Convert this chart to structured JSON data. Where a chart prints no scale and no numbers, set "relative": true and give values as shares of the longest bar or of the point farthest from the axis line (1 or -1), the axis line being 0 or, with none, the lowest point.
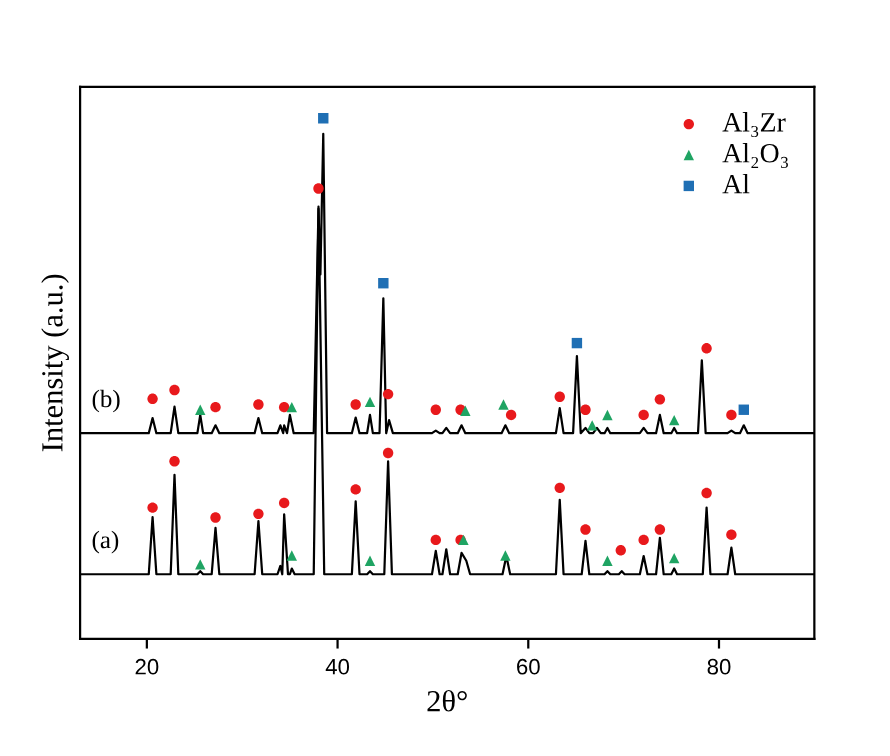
{
  "chart_data": {
    "type": "line",
    "relative": true,
    "xlabel": "2θ°",
    "ylabel": "Intensity (a.u.)",
    "xlim": [
      13,
      90
    ],
    "xticks": [
      20,
      40,
      60,
      80
    ],
    "legend": "top right",
    "grid": false,
    "series": [
      {
        "name": "(a)",
        "color": "#000000",
        "marker": "none",
        "x": [
          13,
          20.2,
          20.6,
          21.0,
          22.5,
          22.9,
          23.3,
          25.3,
          25.6,
          25.9,
          26.8,
          27.2,
          27.6,
          31.3,
          31.7,
          32.1,
          33.7,
          34.0,
          34.2,
          34.4,
          34.8,
          35.0,
          35.2,
          35.5,
          37.5,
          38.0,
          38.6,
          41.5,
          41.9,
          42.3,
          43.1,
          43.4,
          43.7,
          44.9,
          45.3,
          45.7,
          49.9,
          50.3,
          50.7,
          51.0,
          51.4,
          51.8,
          52.6,
          53.0,
          53.5,
          53.9,
          57.3,
          57.7,
          58.1,
          62.9,
          63.3,
          63.7,
          65.6,
          66.0,
          66.4,
          68.0,
          68.3,
          68.6,
          69.5,
          69.8,
          70.1,
          71.7,
          72.1,
          72.5,
          73.4,
          73.8,
          74.2,
          75.0,
          75.3,
          75.6,
          78.3,
          78.7,
          79.1,
          80.9,
          81.3,
          81.7,
          90
        ],
        "values": [
          0.124,
          0.124,
          0.234,
          0.124,
          0.124,
          0.315,
          0.124,
          0.124,
          0.13,
          0.124,
          0.124,
          0.213,
          0.124,
          0.124,
          0.226,
          0.124,
          0.124,
          0.14,
          0.124,
          0.239,
          0.124,
          0.124,
          0.135,
          0.124,
          0.124,
          0.83,
          0.124,
          0.124,
          0.264,
          0.124,
          0.124,
          0.13,
          0.124,
          0.124,
          0.341,
          0.124,
          0.124,
          0.169,
          0.124,
          0.124,
          0.172,
          0.124,
          0.124,
          0.165,
          0.15,
          0.124,
          0.124,
          0.159,
          0.124,
          0.124,
          0.267,
          0.124,
          0.124,
          0.188,
          0.124,
          0.124,
          0.13,
          0.124,
          0.124,
          0.13,
          0.124,
          0.124,
          0.159,
          0.124,
          0.124,
          0.194,
          0.124,
          0.124,
          0.135,
          0.124,
          0.124,
          0.252,
          0.124,
          0.124,
          0.175,
          0.124,
          0.124
        ]
      },
      {
        "name": "(b)",
        "color": "#000000",
        "marker": "none",
        "x": [
          13,
          20.2,
          20.6,
          21.0,
          22.5,
          22.9,
          23.3,
          25.3,
          25.6,
          25.9,
          26.8,
          27.2,
          27.6,
          31.3,
          31.7,
          32.1,
          33.7,
          34.0,
          34.3,
          34.4,
          34.7,
          35.0,
          35.4,
          37.5,
          38.0,
          38.2,
          38.5,
          38.9,
          41.5,
          41.9,
          42.3,
          43.1,
          43.4,
          43.7,
          44.4,
          44.8,
          45.1,
          45.4,
          45.8,
          49.9,
          50.3,
          50.7,
          51.0,
          51.4,
          51.8,
          52.6,
          53.0,
          53.4,
          57.2,
          57.6,
          58.0,
          62.9,
          63.3,
          63.7,
          64.7,
          65.1,
          65.5,
          66.0,
          66.4,
          66.8,
          67.2,
          67.6,
          68.0,
          68.3,
          68.6,
          71.7,
          72.1,
          72.5,
          73.4,
          73.8,
          74.2,
          75.0,
          75.3,
          75.6,
          77.8,
          78.2,
          78.6,
          80.9,
          81.3,
          81.7,
          82.2,
          82.6,
          83.0,
          90
        ],
        "values": [
          0.395,
          0.395,
          0.424,
          0.395,
          0.395,
          0.446,
          0.395,
          0.395,
          0.43,
          0.395,
          0.395,
          0.41,
          0.395,
          0.395,
          0.424,
          0.395,
          0.395,
          0.41,
          0.395,
          0.41,
          0.395,
          0.43,
          0.395,
          0.395,
          0.826,
          0.7,
          0.97,
          0.395,
          0.395,
          0.425,
          0.395,
          0.395,
          0.43,
          0.395,
          0.395,
          0.654,
          0.395,
          0.42,
          0.395,
          0.395,
          0.4,
          0.395,
          0.395,
          0.405,
          0.395,
          0.395,
          0.41,
          0.395,
          0.395,
          0.41,
          0.395,
          0.395,
          0.443,
          0.395,
          0.395,
          0.543,
          0.395,
          0.405,
          0.395,
          0.395,
          0.405,
          0.395,
          0.395,
          0.405,
          0.395,
          0.395,
          0.405,
          0.395,
          0.395,
          0.43,
          0.395,
          0.395,
          0.405,
          0.395,
          0.395,
          0.535,
          0.395,
          0.395,
          0.4,
          0.395,
          0.395,
          0.41,
          0.395,
          0.395
        ]
      },
      {
        "name": "Al₃Zr",
        "type": "scatter",
        "color": "#e8191c",
        "marker": "circle",
        "x": [
          20.6,
          22.9,
          27.2,
          31.7,
          34.4,
          41.9,
          45.3,
          50.3,
          52.9,
          63.3,
          66.0,
          69.7,
          72.1,
          73.8,
          78.7,
          81.3,
          20.6,
          22.9,
          27.2,
          31.7,
          34.4,
          38.0,
          41.9,
          45.3,
          50.3,
          52.9,
          58.2,
          63.3,
          66.0,
          72.1,
          73.8,
          78.7,
          81.3
        ],
        "values": [
          0.252,
          0.341,
          0.233,
          0.24,
          0.261,
          0.287,
          0.357,
          0.19,
          0.19,
          0.29,
          0.21,
          0.17,
          0.19,
          0.21,
          0.28,
          0.2,
          0.461,
          0.478,
          0.445,
          0.45,
          0.445,
          0.865,
          0.45,
          0.47,
          0.44,
          0.44,
          0.43,
          0.465,
          0.44,
          0.43,
          0.46,
          0.558,
          0.43
        ]
      },
      {
        "name": "Al₂O₃",
        "type": "scatter",
        "color": "#1fa463",
        "marker": "triangle",
        "x": [
          25.6,
          35.2,
          43.4,
          53.2,
          57.6,
          68.3,
          75.3,
          25.6,
          35.2,
          43.4,
          53.4,
          57.4,
          66.7,
          68.3,
          75.3
        ],
        "values": [
          0.143,
          0.16,
          0.15,
          0.19,
          0.16,
          0.15,
          0.155,
          0.44,
          0.445,
          0.455,
          0.438,
          0.45,
          0.41,
          0.43,
          0.42
        ]
      },
      {
        "name": "Al",
        "type": "scatter",
        "color": "#1f6fb4",
        "marker": "square",
        "x": [
          38.5,
          44.8,
          65.1,
          82.6
        ],
        "values": [
          1.0,
          0.683,
          0.568,
          0.44
        ]
      }
    ]
  }
}
